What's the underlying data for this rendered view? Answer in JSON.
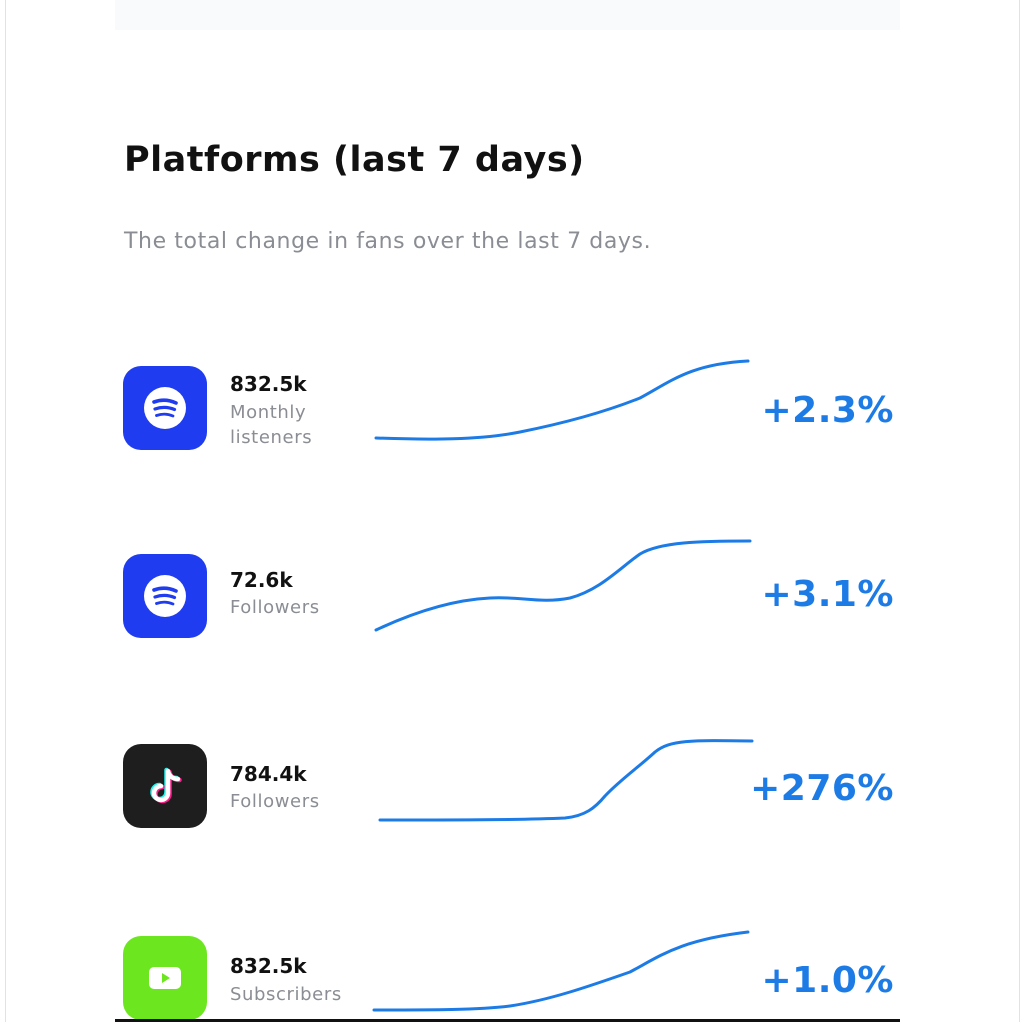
{
  "header": {
    "title": "Platforms (last 7 days)",
    "subtitle": "The total change in fans over the last 7 days."
  },
  "platforms": [
    {
      "icon": "spotify-icon",
      "icon_color": "#1f3cf0",
      "value": "832.5k",
      "label": "Monthly listeners",
      "change": "+2.3%"
    },
    {
      "icon": "spotify-icon",
      "icon_color": "#1f3cf0",
      "value": "72.6k",
      "label": "Followers",
      "change": "+3.1%"
    },
    {
      "icon": "tiktok-icon",
      "icon_color": "#1e1e1e",
      "value": "784.4k",
      "label": "Followers",
      "change": "+276%"
    },
    {
      "icon": "youtube-icon",
      "icon_color": "#6ce61e",
      "value": "832.5k",
      "label": "Subscribers",
      "change": "+1.0%"
    }
  ],
  "colors": {
    "accent": "#1d7be6",
    "muted_text": "#8a8d93"
  }
}
